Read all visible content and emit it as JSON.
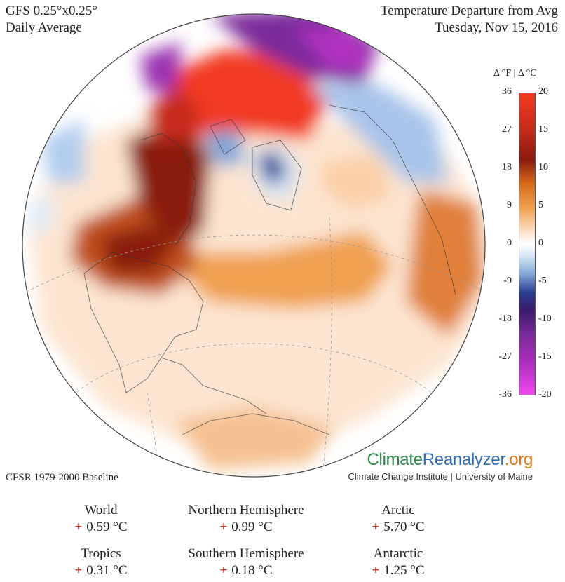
{
  "header": {
    "model": "GFS 0.25°x0.25°",
    "period": "Daily Average",
    "title": "Temperature Departure from Avg",
    "date": "Tuesday, Nov 15, 2016"
  },
  "colorbar": {
    "units_label": "Δ °F  |  Δ °C",
    "fahrenheit_ticks": [
      "36",
      "27",
      "18",
      "9",
      "0",
      "-9",
      "-18",
      "-27",
      "-36"
    ],
    "celsius_ticks": [
      "20",
      "15",
      "10",
      "5",
      "0",
      "-5",
      "-10",
      "-15",
      "-20"
    ],
    "colors": {
      "warm_max": "#f23a22",
      "warm_dark": "#8a1a10",
      "warm_mid": "#d96a1a",
      "neutral": "#ffffff",
      "cool": "#7fa6d8",
      "cold_dark": "#2c3f94",
      "cold_extreme": "#f046f0"
    }
  },
  "baseline": "CFSR 1979-2000 Baseline",
  "branding": {
    "logo_part1": "Climate",
    "logo_part2": "Reanalyzer",
    "logo_part3": ".org",
    "subtitle": "Climate Change Institute | University of Maine"
  },
  "stats": [
    {
      "label": "World",
      "sign": "+",
      "value": "0.59 °C"
    },
    {
      "label": "Northern Hemisphere",
      "sign": "+",
      "value": "0.99 °C"
    },
    {
      "label": "Arctic",
      "sign": "+",
      "value": "5.70 °C"
    },
    {
      "label": "Tropics",
      "sign": "+",
      "value": "0.31 °C"
    },
    {
      "label": "Southern Hemisphere",
      "sign": "+",
      "value": "0.18 °C"
    },
    {
      "label": "Antarctic",
      "sign": "+",
      "value": "1.25 °C"
    }
  ]
}
